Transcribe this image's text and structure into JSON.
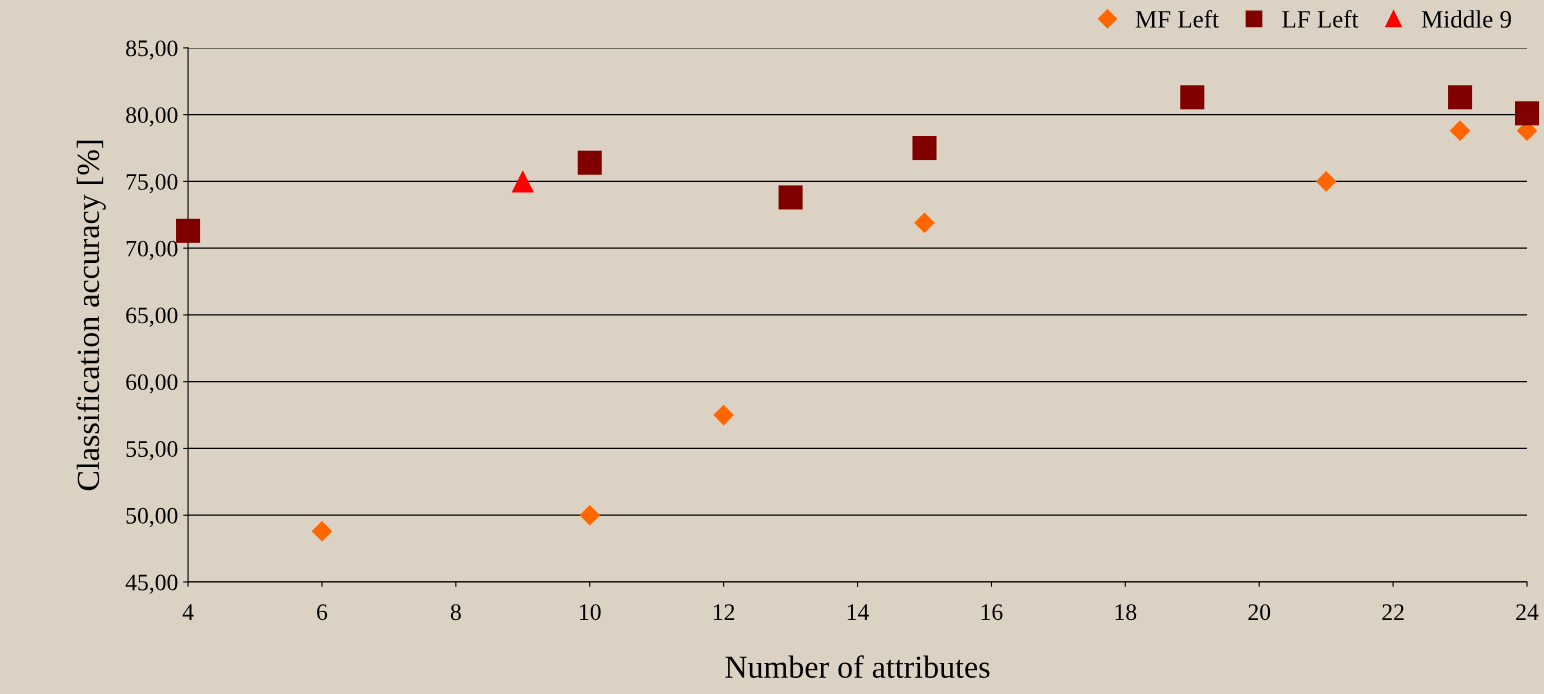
{
  "chart_data": {
    "type": "scatter",
    "xlabel": "Number of attributes",
    "ylabel": "Classification accuracy [%]",
    "xlim": [
      4,
      24
    ],
    "xticks": [
      4,
      6,
      8,
      10,
      12,
      14,
      16,
      18,
      20,
      22,
      24
    ],
    "ylim": [
      45,
      85
    ],
    "yticks": [
      {
        "value": 45,
        "label": "45,00"
      },
      {
        "value": 50,
        "label": "50,00"
      },
      {
        "value": 55,
        "label": "55,00"
      },
      {
        "value": 60,
        "label": "60,00"
      },
      {
        "value": 65,
        "label": "65,00"
      },
      {
        "value": 70,
        "label": "70,00"
      },
      {
        "value": 75,
        "label": "75,00"
      },
      {
        "value": 80,
        "label": "80,00"
      },
      {
        "value": 85,
        "label": "85,00"
      }
    ],
    "grid": "y",
    "legend": "top right",
    "series": [
      {
        "name": "MF Left",
        "color": "#ff6600",
        "marker": "diamond",
        "x": [
          6,
          10,
          12,
          15,
          21,
          23,
          24
        ],
        "values": [
          48.8,
          50.0,
          57.5,
          71.9,
          75.0,
          78.8,
          78.8
        ]
      },
      {
        "name": "LF Left",
        "color": "#800000",
        "marker": "square",
        "x": [
          4,
          10,
          13,
          15,
          19,
          23,
          24
        ],
        "values": [
          71.3,
          76.4,
          73.8,
          77.5,
          81.3,
          81.3,
          80.1
        ]
      },
      {
        "name": "Middle 9",
        "color": "#ff0000",
        "marker": "triangle",
        "x": [
          9
        ],
        "values": [
          75.0
        ]
      }
    ]
  }
}
